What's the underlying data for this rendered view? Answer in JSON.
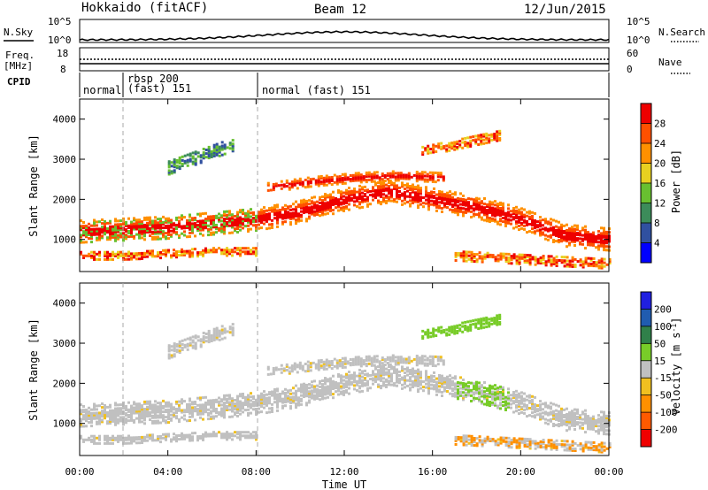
{
  "header": {
    "station": "Hokkaido (fitACF)",
    "beam": "Beam 12",
    "date": "12/Jun/2015"
  },
  "noise_panel": {
    "left_label": "N.Sky",
    "right_label": "N.Search",
    "ticks_top": "10^5",
    "ticks_bottom": "10^0"
  },
  "freq_panel": {
    "left_label_1": "Freq.",
    "left_label_2": "[MHz]",
    "left_ticks": [
      "18",
      "8"
    ],
    "right_label": "Nave",
    "right_ticks": [
      "60",
      "0"
    ]
  },
  "cpid_panel": {
    "label": "CPID",
    "modes": [
      {
        "text_1": "normal",
        "text_2": ""
      },
      {
        "text_1": "rbsp 200",
        "text_2": "(fast) 151"
      },
      {
        "text_1": "normal (fast) 151",
        "text_2": ""
      }
    ]
  },
  "colors": {
    "power": [
      "#0000ff",
      "#3050a0",
      "#3c8c5a",
      "#68c030",
      "#e8d020",
      "#ff9000",
      "#ff5000",
      "#ee0000"
    ],
    "velocity": [
      "#2020e0",
      "#205cb0",
      "#30804a",
      "#78cc28",
      "#c0c0c0",
      "#f0c020",
      "#ff9000",
      "#ff5a00",
      "#f00000"
    ]
  },
  "chart_data": [
    {
      "type": "heatmap",
      "name": "power",
      "ylabel": "Slant Range [km]",
      "ylim": [
        200,
        4500
      ],
      "yticks": [
        "1000",
        "2000",
        "3000",
        "4000"
      ],
      "xlim": [
        0,
        24
      ],
      "xticks": [
        "00:00",
        "04:00",
        "08:00",
        "12:00",
        "16:00",
        "20:00",
        "00:00"
      ],
      "colorbar_label": "Power [dB]",
      "colorbar_ticks": [
        "4",
        "8",
        "12",
        "16",
        "20",
        "24",
        "28"
      ],
      "color_range": [
        0,
        32
      ]
    },
    {
      "type": "heatmap",
      "name": "velocity",
      "ylabel": "Slant Range [km]",
      "ylim": [
        200,
        4500
      ],
      "yticks": [
        "1000",
        "2000",
        "3000",
        "4000"
      ],
      "xlim": [
        0,
        24
      ],
      "xticks": [
        "00:00",
        "04:00",
        "08:00",
        "12:00",
        "16:00",
        "20:00",
        "00:00"
      ],
      "xlabel": "Time UT",
      "colorbar_label": "Velocity [m s",
      "colorbar_label_sup": "-1",
      "colorbar_ticks": [
        "200",
        "100",
        "50",
        "15",
        "-15",
        "-50",
        "-100",
        "-200"
      ],
      "color_range": [
        -250,
        250
      ]
    }
  ],
  "bands": [
    {
      "t0": 0.0,
      "t1": 24.0,
      "r_center": [
        1200,
        1250,
        1300,
        1400,
        1500,
        1700,
        2000,
        2200,
        2000,
        1800,
        1500,
        1100,
        1000
      ],
      "width": 550
    },
    {
      "t0": 0.0,
      "t1": 8.0,
      "r_center": [
        600,
        600,
        650,
        700,
        700
      ],
      "width": 200
    },
    {
      "t0": 8.5,
      "t1": 16.5,
      "r_center": [
        2300,
        2450,
        2550,
        2600,
        2550
      ],
      "width": 250
    },
    {
      "t0": 15.5,
      "t1": 19.0,
      "r_center": [
        3200,
        3400,
        3600
      ],
      "width": 250
    },
    {
      "t0": 4.0,
      "t1": 7.0,
      "r_center": [
        2800,
        3100,
        3400
      ],
      "width": 350
    },
    {
      "t0": 17.0,
      "t1": 24.0,
      "r_center": [
        600,
        500,
        400
      ],
      "width": 250
    }
  ]
}
